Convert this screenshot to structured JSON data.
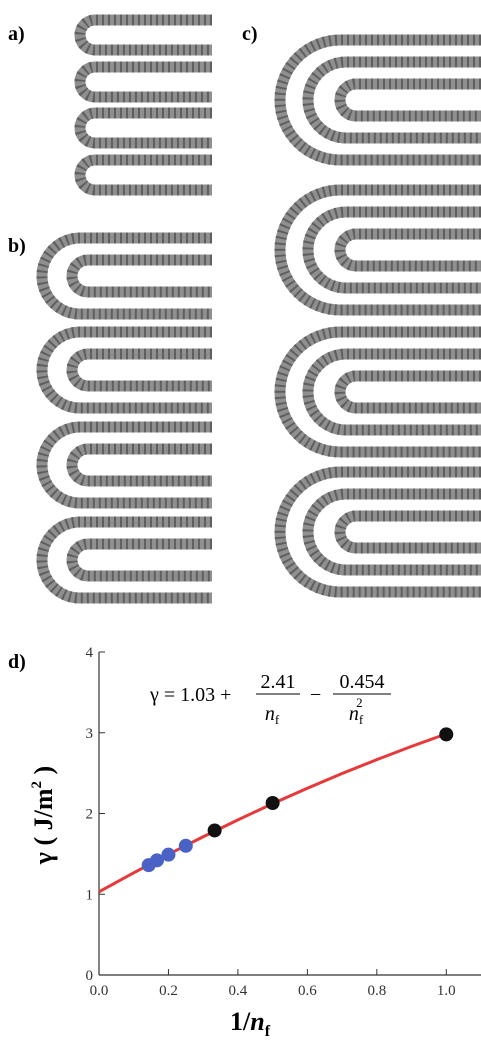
{
  "panel_labels": [
    "a)",
    "b)",
    "c)",
    "d)"
  ],
  "chart_data": {
    "type": "scatter",
    "xlabel": {
      "main": "1/",
      "var": "n",
      "sub": "f"
    },
    "ylabel": {
      "main": "γ ( J/m",
      "sup": "2",
      "end": " )"
    },
    "equation": {
      "lhs": "γ = 1.03 +",
      "num1": "2.41",
      "den1": "n",
      "den1_sub": "f",
      "op": "−",
      "num2": "0.454",
      "den2": "n",
      "den2_sub": "f",
      "den2_sup": "2"
    },
    "xlim": [
      0,
      1.1
    ],
    "ylim": [
      0,
      4
    ],
    "xticks": [
      {
        "value": 0,
        "label": "0.0"
      },
      0.2,
      0.4,
      0.6,
      0.8,
      {
        "value": 1,
        "label": "1.0"
      }
    ],
    "yticks": [
      0,
      1,
      2,
      3,
      4
    ],
    "series": [
      {
        "type": "line",
        "color": "#e8393a",
        "x": [
          0,
          0.1,
          0.2,
          0.3,
          0.4,
          0.5,
          0.6,
          0.7,
          0.8,
          0.9,
          1
        ],
        "values": [
          1.03,
          1.266,
          1.494,
          1.712,
          1.921,
          2.122,
          2.313,
          2.495,
          2.667,
          2.831,
          2.986
        ]
      },
      {
        "type": "scatter",
        "color": "#4a62c6",
        "x": [
          0.143,
          0.167,
          0.2,
          0.25
        ],
        "values": [
          1.36,
          1.42,
          1.49,
          1.6
        ]
      },
      {
        "type": "scatter",
        "color": "#111111",
        "x": [
          0.333,
          0.5,
          1
        ],
        "values": [
          1.79,
          2.13,
          2.98
        ]
      }
    ]
  }
}
